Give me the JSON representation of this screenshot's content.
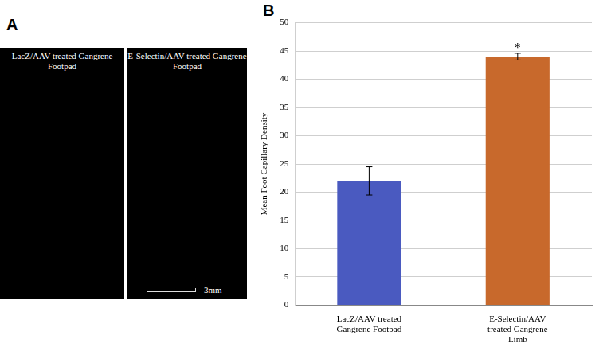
{
  "panel_a": {
    "label": "A",
    "images": [
      {
        "title": "LacZ/AAV treated Gangrene Footpad"
      },
      {
        "title": "E-Selectin/AAV treated Gangrene Footpad"
      }
    ],
    "scale_bar": "3mm"
  },
  "panel_b": {
    "label": "B"
  },
  "chart_data": {
    "type": "bar",
    "y_label": "Mean Foot Capillary Density",
    "categories": [
      "LacZ/AAV treated Gangrene Footpad",
      "E-Selectin/AAV treated Gangrene Limb"
    ],
    "values": [
      22,
      44
    ],
    "errors": [
      2.5,
      0.6
    ],
    "colors": [
      "#4a5ac0",
      "#c8692c"
    ],
    "ylim": [
      0,
      50
    ],
    "yticks": [
      0,
      5,
      10,
      15,
      20,
      25,
      30,
      35,
      40,
      45,
      50
    ],
    "grid": true,
    "annotations": [
      {
        "text": "*",
        "category": "E-Selectin/AAV treated Gangrene Limb"
      }
    ]
  }
}
